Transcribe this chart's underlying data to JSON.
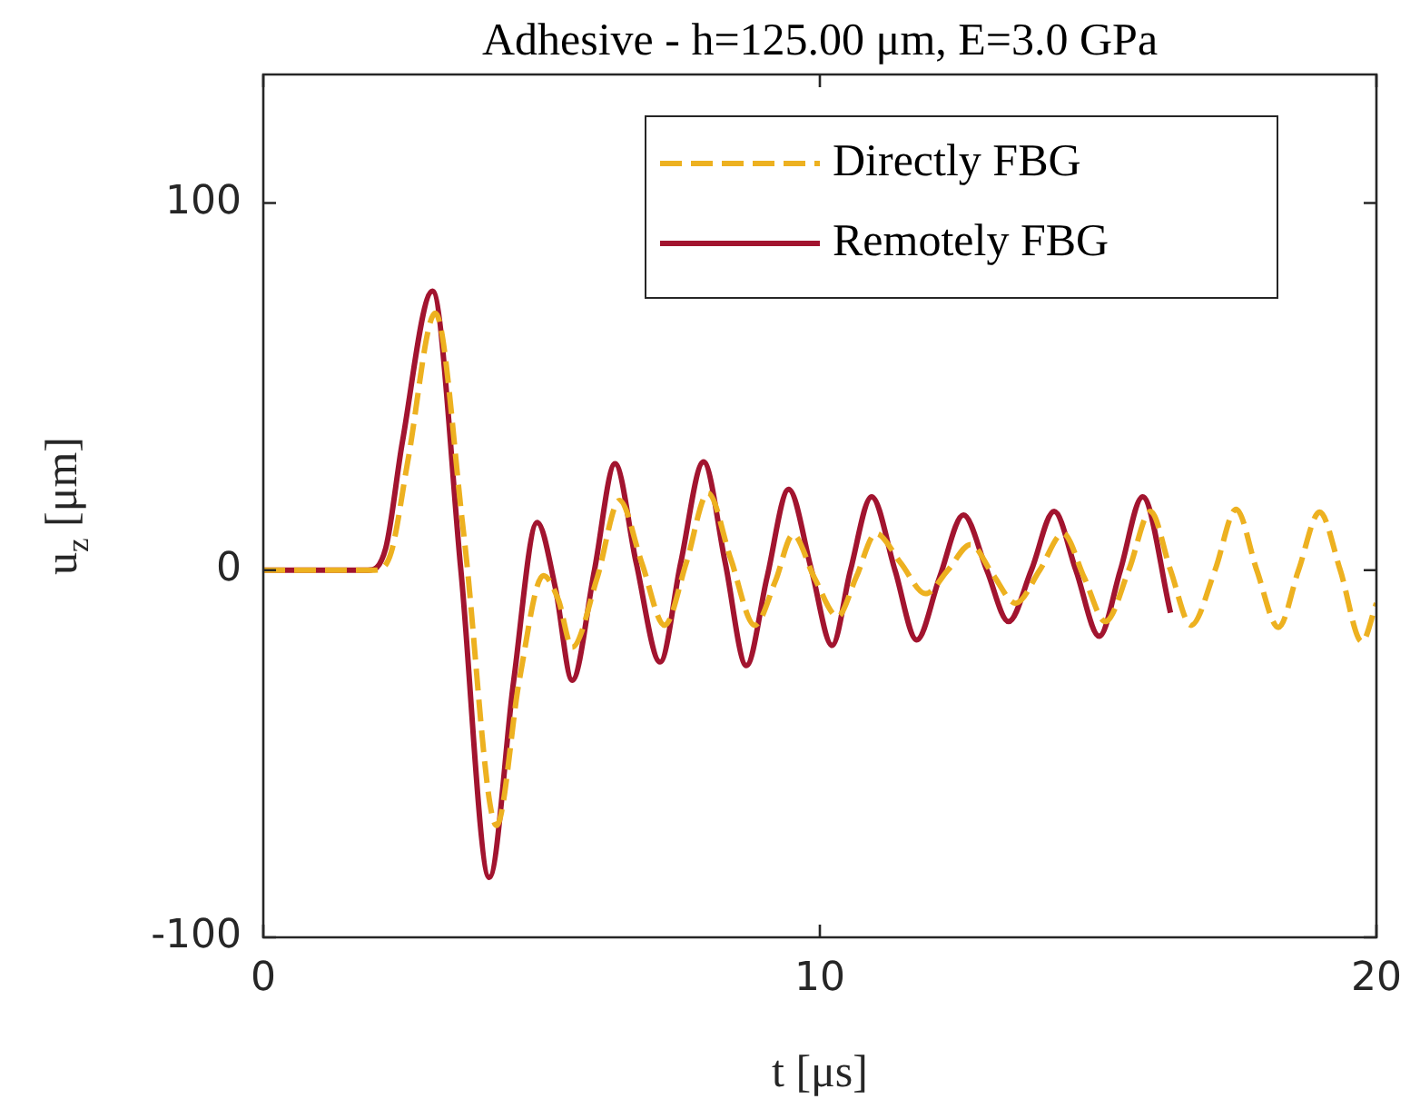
{
  "chart_data": {
    "type": "line",
    "title": "Adhesive - h=125.00 μm, E=3.0 GPa",
    "xlabel": "t [μs]",
    "ylabel": "u$_{z}$ [μm]",
    "xlim": [
      0,
      20
    ],
    "xticks": [
      0,
      10,
      20
    ],
    "ylim": [
      -100,
      135
    ],
    "yticks": [
      -100,
      0,
      100
    ],
    "grid": false,
    "legend": "top",
    "marker": "none",
    "series": [
      {
        "name": "Directly FBG",
        "color": "#edb120",
        "line_style": "dashed",
        "x": [
          0,
          2.0,
          2.3,
          2.6,
          3.09,
          3.6,
          4.19,
          4.6,
          5.03,
          5.3,
          5.55,
          6.0,
          6.4,
          6.8,
          7.21,
          7.6,
          7.99,
          8.4,
          8.83,
          9.2,
          9.52,
          9.9,
          10.32,
          10.65,
          11.01,
          11.45,
          11.9,
          12.3,
          12.71,
          13.1,
          13.52,
          13.95,
          14.37,
          14.75,
          15.13,
          15.55,
          15.94,
          16.3,
          16.67,
          17.1,
          17.48,
          17.85,
          18.24,
          18.6,
          18.98,
          19.35,
          19.74,
          20
        ],
        "values": [
          0,
          0,
          5,
          30,
          70,
          10,
          -69.5,
          -30,
          -1.5,
          -8,
          -21,
          -2,
          19,
          2,
          -15,
          2,
          21,
          3,
          -15,
          -3,
          9.7,
          -2,
          -12.6,
          -2,
          10,
          2,
          -6.4,
          0,
          7,
          -1,
          -9,
          0,
          10,
          -2,
          -14,
          0,
          16,
          0,
          -15,
          0,
          16.6,
          0,
          -15.6,
          0,
          15.8,
          0,
          -19.5,
          -9
        ]
      },
      {
        "name": "Remotely FBG",
        "color": "#a2142f",
        "line_style": "solid",
        "x": [
          0,
          1.88,
          2.2,
          2.5,
          3.04,
          3.55,
          4.06,
          4.5,
          4.92,
          5.25,
          5.55,
          5.95,
          6.32,
          6.7,
          7.13,
          7.5,
          7.91,
          8.3,
          8.68,
          9.05,
          9.44,
          9.85,
          10.22,
          10.55,
          10.93,
          11.35,
          11.74,
          12.15,
          12.58,
          13.0,
          13.39,
          13.8,
          14.21,
          14.6,
          15.02,
          15.4,
          15.8,
          16.3
        ],
        "values": [
          0,
          0,
          6,
          35,
          76,
          0,
          -83.7,
          -30,
          13,
          -5,
          -30,
          0,
          29,
          2,
          -25,
          2,
          29.5,
          2,
          -26,
          -2,
          22,
          0,
          -20.5,
          0,
          20,
          0,
          -19,
          -2,
          15,
          0,
          -14,
          0,
          16,
          0,
          -18,
          0,
          20,
          -11.6
        ]
      }
    ]
  }
}
